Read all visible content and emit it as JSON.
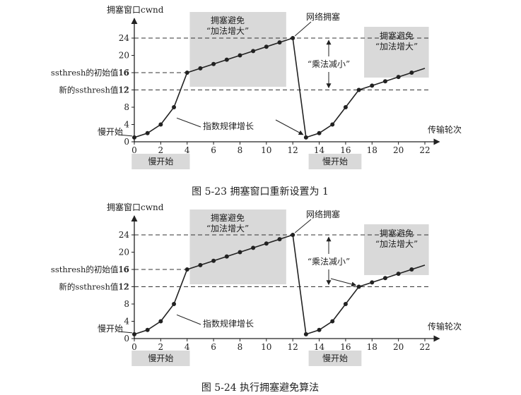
{
  "figures": [
    {
      "caption": "图 5-23   拥塞窗口重新设置为 1",
      "y_axis_label": "拥塞窗口cwnd",
      "x_axis_label": "传输轮次",
      "x_ticks": [
        "0",
        "2",
        "4",
        "6",
        "8",
        "10",
        "12",
        "14",
        "16",
        "18",
        "20",
        "22"
      ],
      "y_ticks": [
        "0",
        "4",
        "8",
        "12",
        "16",
        "20",
        "24"
      ],
      "ssthresh_initial_label": "ssthresh的初始值16",
      "ssthresh_new_label": "新的ssthresh值12",
      "slow_start_label": "慢开始",
      "slow_start_band_label_1": "慢开始",
      "slow_start_band_label_2": "慢开始",
      "cong_avoid_label_1": "拥塞避免",
      "cong_avoid_label_1b": "“加法增大”",
      "cong_avoid_label_2": "拥塞避免",
      "cong_avoid_label_2b": "“加法增大”",
      "network_congestion_label": "网络拥塞",
      "mult_decrease_label": "“乘法减小”",
      "exponential_label": "指数规律增长",
      "chart_data": {
        "type": "line",
        "x": [
          0,
          1,
          2,
          3,
          4,
          5,
          6,
          7,
          8,
          9,
          10,
          11,
          12,
          13,
          14,
          15,
          16,
          17,
          18,
          19,
          20,
          21,
          22
        ],
        "series": [
          {
            "values": [
              1,
              2,
              4,
              8,
              16,
              17,
              18,
              19,
              20,
              21,
              22,
              23,
              24,
              1,
              2,
              4,
              8,
              12,
              13,
              14,
              15,
              16,
              17
            ]
          }
        ],
        "xlim": [
          0,
          22
        ],
        "ylim": [
          0,
          24
        ]
      }
    },
    {
      "caption": "图 5-24   执行拥塞避免算法",
      "y_axis_label": "拥塞窗口cwnd",
      "x_axis_label": "传输轮次",
      "x_ticks": [
        "0",
        "2",
        "4",
        "6",
        "8",
        "10",
        "12",
        "14",
        "16",
        "18",
        "20",
        "22"
      ],
      "y_ticks": [
        "0",
        "4",
        "8",
        "12",
        "16",
        "20",
        "24"
      ],
      "ssthresh_initial_label": "ssthresh的初始值16",
      "ssthresh_new_label": "新的ssthresh值12",
      "slow_start_label": "慢开始",
      "slow_start_band_label_1": "慢开始",
      "slow_start_band_label_2": "慢开始",
      "cong_avoid_label_1": "拥塞避免",
      "cong_avoid_label_1b": "“加法增大”",
      "cong_avoid_label_2": "拥塞避免",
      "cong_avoid_label_2b": "“加法增大”",
      "network_congestion_label": "网络拥塞",
      "mult_decrease_label": "“乘法减小”",
      "exponential_label": "指数规律增长",
      "chart_data": {
        "type": "line",
        "x": [
          0,
          1,
          2,
          3,
          4,
          5,
          6,
          7,
          8,
          9,
          10,
          11,
          12,
          13,
          14,
          15,
          16,
          17,
          18,
          19,
          20,
          21,
          22
        ],
        "series": [
          {
            "values": [
              1,
              2,
              4,
              8,
              16,
              17,
              18,
              19,
              20,
              21,
              22,
              23,
              24,
              1,
              2,
              4,
              8,
              12,
              13,
              14,
              15,
              16,
              17
            ]
          }
        ],
        "xlim": [
          0,
          22
        ],
        "ylim": [
          0,
          24
        ]
      }
    }
  ],
  "colors": {
    "line": "#222222",
    "band": "#d9d9d9",
    "dashed": "#333333"
  }
}
